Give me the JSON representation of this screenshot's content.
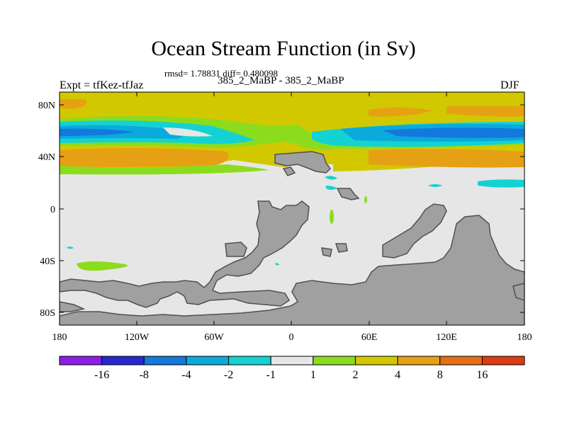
{
  "header": {
    "title": "Ocean Stream Function (in Sv)",
    "stats": "rmsd= 1.78831 diff= 0.480098",
    "left_label": "Expt = tfKez-tfJaz",
    "center_label": "385_2_MaBP - 385_2_MaBP",
    "right_label": "DJF"
  },
  "map": {
    "lat_ticks": [
      "80N",
      "40N",
      "0",
      "40S",
      "80S"
    ],
    "lon_ticks": [
      "180",
      "120W",
      "60W",
      "0",
      "60E",
      "120E",
      "180"
    ],
    "land_color": "#a0a0a0",
    "background_color": "#e6e6e6"
  },
  "colorbar": {
    "labels": [
      "-16",
      "-8",
      "-4",
      "-2",
      "-1",
      "1",
      "2",
      "4",
      "8",
      "16"
    ],
    "colors": [
      "#8c1ee6",
      "#2828d2",
      "#1478dc",
      "#0aaadc",
      "#14d2d2",
      "#e6e6e6",
      "#8cdc1e",
      "#d2c800",
      "#e6a014",
      "#e66e14",
      "#dc3c14"
    ]
  }
}
